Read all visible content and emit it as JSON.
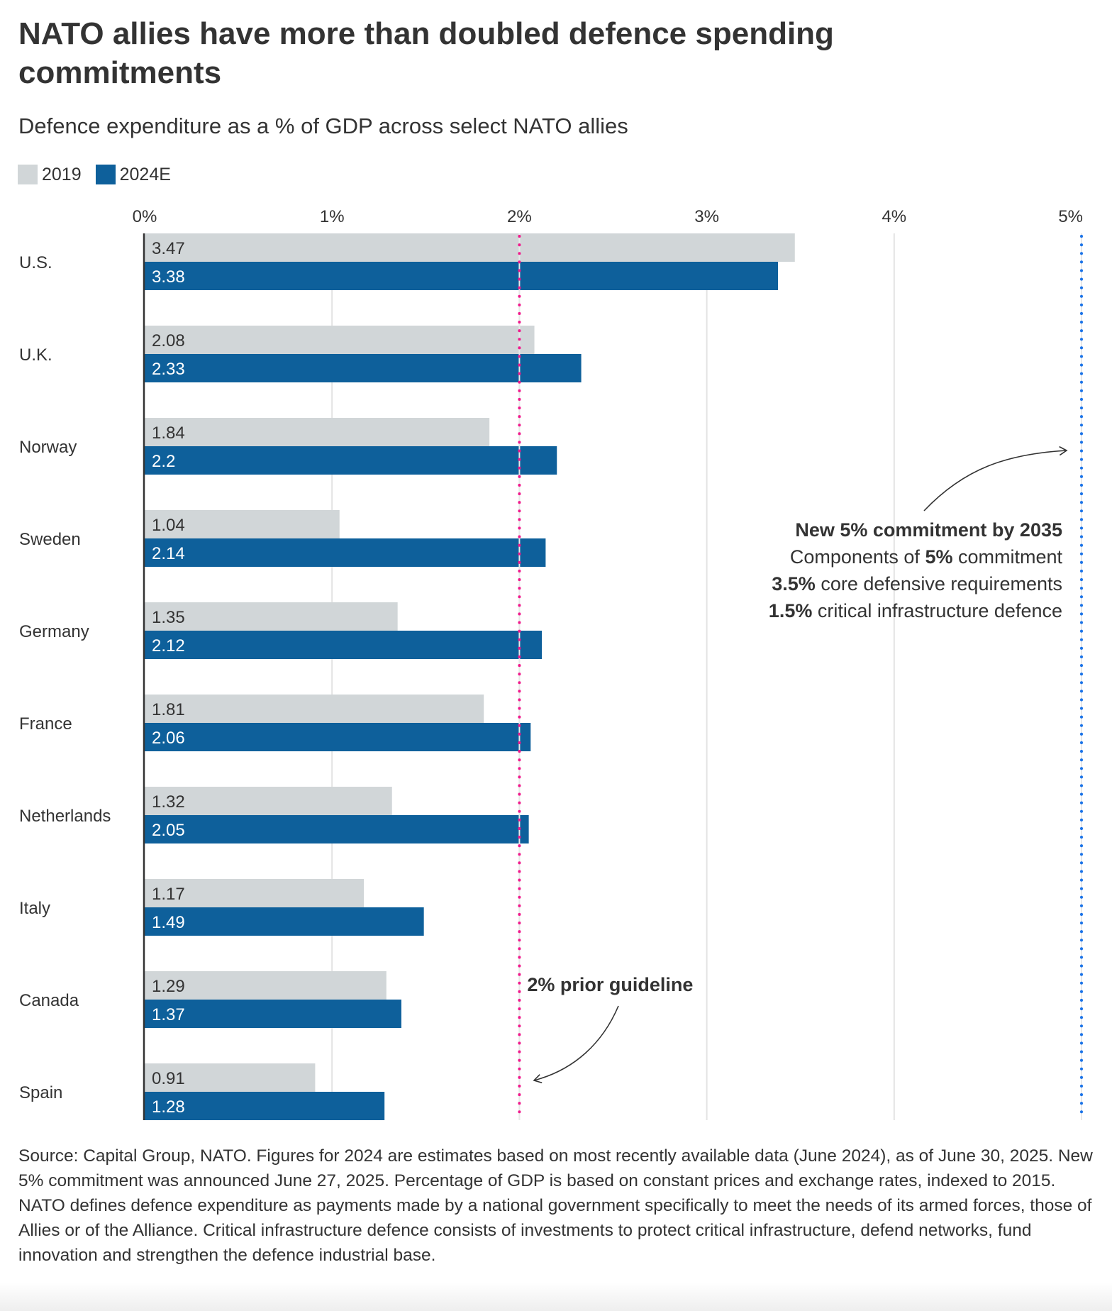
{
  "header": {
    "title": "NATO allies have more than doubled defence spending commitments",
    "subtitle": "Defence expenditure as a % of GDP across select NATO allies"
  },
  "legend": [
    {
      "label": "2019",
      "color": "#d1d6d8"
    },
    {
      "label": "2024E",
      "color": "#0e609b"
    }
  ],
  "chart_data": {
    "type": "bar",
    "orientation": "horizontal",
    "title": "NATO allies have more than doubled defence spending commitments",
    "subtitle": "Defence expenditure as a % of GDP across select NATO allies",
    "xlabel": "",
    "ylabel": "",
    "xlim": [
      0,
      5
    ],
    "x_ticks": [
      "0%",
      "1%",
      "2%",
      "3%",
      "4%",
      "5%"
    ],
    "grid": true,
    "legend_position": "top-left",
    "categories": [
      "U.S.",
      "U.K.",
      "Norway",
      "Sweden",
      "Germany",
      "France",
      "Netherlands",
      "Italy",
      "Canada",
      "Spain"
    ],
    "series": [
      {
        "name": "2019",
        "color": "#d1d6d8",
        "label_color": "#333333",
        "values": [
          3.47,
          2.08,
          1.84,
          1.04,
          1.35,
          1.81,
          1.32,
          1.17,
          1.29,
          0.91
        ],
        "labels": [
          "3.47",
          "2.08",
          "1.84",
          "1.04",
          "1.35",
          "1.81",
          "1.32",
          "1.17",
          "1.29",
          "0.91"
        ]
      },
      {
        "name": "2024E",
        "color": "#0e609b",
        "label_color": "#ffffff",
        "values": [
          3.38,
          2.33,
          2.2,
          2.14,
          2.12,
          2.06,
          2.05,
          1.49,
          1.37,
          1.28
        ],
        "labels": [
          "3.38",
          "2.33",
          "2.2",
          "2.14",
          "2.12",
          "2.06",
          "2.05",
          "1.49",
          "1.37",
          "1.28"
        ]
      }
    ],
    "reference_lines": [
      {
        "value": 2,
        "color": "#f0198c",
        "style": "dotted",
        "label": "2% prior guideline"
      },
      {
        "value": 5,
        "color": "#1a73e8",
        "style": "dotted"
      }
    ],
    "annotations": [
      {
        "name": "prior-guideline",
        "target_value": 2,
        "lines": [
          [
            {
              "text": "2% prior guideline",
              "bold": true
            }
          ]
        ]
      },
      {
        "name": "new-commitment",
        "target_value": 5,
        "lines": [
          [
            {
              "text": "New 5% commitment by 2035",
              "bold": true
            }
          ],
          [
            {
              "text": "Components of ",
              "bold": false
            },
            {
              "text": "5%",
              "bold": true
            },
            {
              "text": " commitment",
              "bold": false
            }
          ],
          [
            {
              "text": "3.5%",
              "bold": true
            },
            {
              "text": " core defensive requirements",
              "bold": false
            }
          ],
          [
            {
              "text": "1.5%",
              "bold": true
            },
            {
              "text": " critical infrastructure defence",
              "bold": false
            }
          ]
        ]
      }
    ]
  },
  "footer": {
    "source": "Source: Capital Group, NATO. Figures for 2024 are estimates based on most recently available data (June 2024), as of June 30, 2025. New 5% commitment was announced June 27, 2025. Percentage of GDP is based on constant prices and exchange rates, indexed to 2015. NATO defines defence expenditure as payments made by a national government specifically to meet the needs of its armed forces, those of Allies or of the Alliance. Critical infrastructure defence consists of investments to protect critical infrastructure, defend networks, fund innovation and strengthen the defence industrial base."
  }
}
